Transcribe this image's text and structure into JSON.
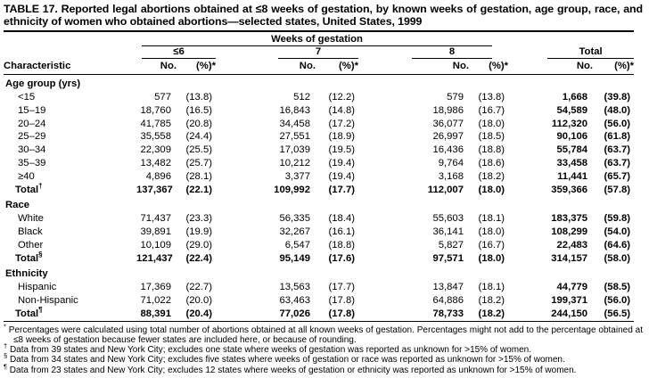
{
  "title": "TABLE 17. Reported legal abortions obtained at ≤8 weeks of gestation, by known weeks of gestation, age group, race, and ethnicity of women who obtained abortions—selected states, United States, 1999",
  "table": {
    "group_header": "Weeks of gestation",
    "col_groups": [
      "≤6",
      "7",
      "8",
      "Total"
    ],
    "sub_headers": [
      "No.",
      "(%)*"
    ],
    "char_header": "Characteristic",
    "sections": [
      {
        "label": "Age group (yrs)",
        "rows": [
          {
            "label": "<15",
            "values": [
              "577",
              "(13.8)",
              "512",
              "(12.2)",
              "579",
              "(13.8)",
              "1,668",
              "(39.8)"
            ]
          },
          {
            "label": "15–19",
            "values": [
              "18,760",
              "(16.5)",
              "16,843",
              "(14.8)",
              "18,986",
              "(16.7)",
              "54,589",
              "(48.0)"
            ]
          },
          {
            "label": "20–24",
            "values": [
              "41,785",
              "(20.8)",
              "34,458",
              "(17.2)",
              "36,077",
              "(18.0)",
              "112,320",
              "(56.0)"
            ]
          },
          {
            "label": "25–29",
            "values": [
              "35,558",
              "(24.4)",
              "27,551",
              "(18.9)",
              "26,997",
              "(18.5)",
              "90,106",
              "(61.8)"
            ]
          },
          {
            "label": "30–34",
            "values": [
              "22,309",
              "(25.5)",
              "17,039",
              "(19.5)",
              "16,436",
              "(18.8)",
              "55,784",
              "(63.7)"
            ]
          },
          {
            "label": "35–39",
            "values": [
              "13,482",
              "(25.7)",
              "10,212",
              "(19.4)",
              "9,764",
              "(18.6)",
              "33,458",
              "(63.7)"
            ]
          },
          {
            "label": "≥40",
            "values": [
              "4,896",
              "(28.1)",
              "3,377",
              "(19.4)",
              "3,168",
              "(18.2)",
              "11,441",
              "(65.7)"
            ]
          }
        ],
        "total": {
          "label": "Total",
          "marker": "†",
          "values": [
            "137,367",
            "(22.1)",
            "109,992",
            "(17.7)",
            "112,007",
            "(18.0)",
            "359,366",
            "(57.8)"
          ]
        }
      },
      {
        "label": "Race",
        "rows": [
          {
            "label": "White",
            "values": [
              "71,437",
              "(23.3)",
              "56,335",
              "(18.4)",
              "55,603",
              "(18.1)",
              "183,375",
              "(59.8)"
            ]
          },
          {
            "label": "Black",
            "values": [
              "39,891",
              "(19.9)",
              "32,267",
              "(16.1)",
              "36,141",
              "(18.0)",
              "108,299",
              "(54.0)"
            ]
          },
          {
            "label": "Other",
            "values": [
              "10,109",
              "(29.0)",
              "6,547",
              "(18.8)",
              "5,827",
              "(16.7)",
              "22,483",
              "(64.6)"
            ]
          }
        ],
        "total": {
          "label": "Total",
          "marker": "§",
          "values": [
            "121,437",
            "(22.4)",
            "95,149",
            "(17.6)",
            "97,571",
            "(18.0)",
            "314,157",
            "(58.0)"
          ]
        }
      },
      {
        "label": "Ethnicity",
        "rows": [
          {
            "label": "Hispanic",
            "values": [
              "17,369",
              "(22.7)",
              "13,563",
              "(17.7)",
              "13,847",
              "(18.1)",
              "44,779",
              "(58.5)"
            ]
          },
          {
            "label": "Non-Hispanic",
            "values": [
              "71,022",
              "(20.0)",
              "63,463",
              "(17.8)",
              "64,886",
              "(18.2)",
              "199,371",
              "(56.0)"
            ]
          }
        ],
        "total": {
          "label": "Total",
          "marker": "¶",
          "values": [
            "88,391",
            "(20.4)",
            "77,026",
            "(17.8)",
            "78,733",
            "(18.2)",
            "244,150",
            "(56.5)"
          ]
        }
      }
    ]
  },
  "footnotes": [
    {
      "marker": "*",
      "text": "Percentages were calculated using total number of abortions obtained at all known weeks of gestation. Percentages might not add to the percentage obtained at ≤8 weeks of gestation because fewer states are included here, or because of rounding."
    },
    {
      "marker": "†",
      "text": "Data from 39 states and New York City; excludes one state where weeks of gestation was reported as unknown for >15% of women."
    },
    {
      "marker": "§",
      "text": "Data from 34 states and New York City; excludes five states where weeks of gestation or race was reported as unknown for >15% of women."
    },
    {
      "marker": "¶",
      "text": "Data from 23 states and New York City; excludes 12 states where weeks of gestation or ethnicity was reported as unknown for >15% of women."
    }
  ]
}
